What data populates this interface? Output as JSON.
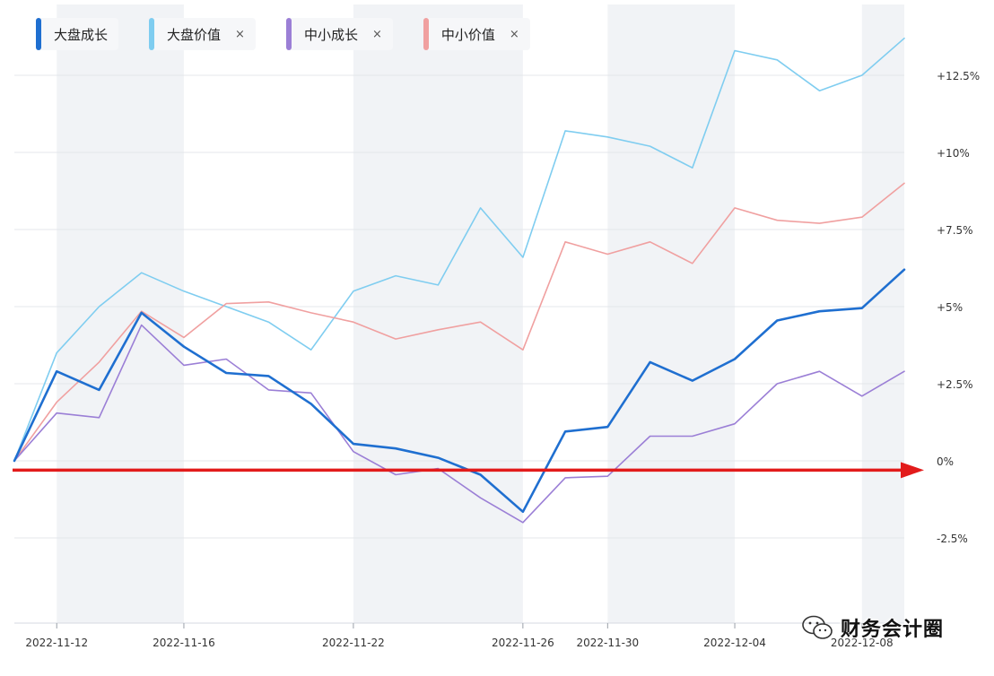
{
  "chart_data": {
    "type": "line",
    "title": "",
    "xlabel": "",
    "ylabel": "",
    "ylim": [
      -4.5,
      14.5
    ],
    "y_ticks": [
      {
        "value": 12.5,
        "label": "+12.5%"
      },
      {
        "value": 10,
        "label": "+10%"
      },
      {
        "value": 7.5,
        "label": "+7.5%"
      },
      {
        "value": 5,
        "label": "+5%"
      },
      {
        "value": 2.5,
        "label": "+2.5%"
      },
      {
        "value": 0,
        "label": "0%"
      },
      {
        "value": -2.5,
        "label": "-2.5%"
      }
    ],
    "x_count": 22,
    "x_tick_labels": [
      {
        "index": 1,
        "label": "2022-11-12"
      },
      {
        "index": 4,
        "label": "2022-11-16"
      },
      {
        "index": 8,
        "label": "2022-11-22"
      },
      {
        "index": 12,
        "label": "2022-11-26"
      },
      {
        "index": 14,
        "label": "2022-11-30"
      },
      {
        "index": 17,
        "label": "2022-12-04"
      },
      {
        "index": 20,
        "label": "2022-12-08"
      }
    ],
    "shaded_bands": [
      [
        1,
        4
      ],
      [
        8,
        12
      ],
      [
        14,
        17
      ],
      [
        20,
        21
      ]
    ],
    "series": [
      {
        "name": "大盘成长",
        "color": "#1f6fd0",
        "width": 2.6,
        "closable": false,
        "values": [
          0,
          2.9,
          2.3,
          4.8,
          3.7,
          2.85,
          2.75,
          1.85,
          0.55,
          0.4,
          0.1,
          -0.45,
          -1.65,
          0.95,
          1.1,
          3.2,
          2.6,
          3.3,
          4.55,
          4.85,
          4.95,
          6.2
        ]
      },
      {
        "name": "大盘价值",
        "color": "#7fcdf0",
        "width": 1.6,
        "closable": true,
        "values": [
          0,
          3.5,
          5.0,
          6.1,
          5.5,
          5.0,
          4.5,
          3.6,
          5.5,
          6.0,
          5.7,
          8.2,
          6.6,
          10.7,
          10.5,
          10.2,
          9.5,
          13.3,
          13.0,
          12.0,
          12.5,
          13.7
        ]
      },
      {
        "name": "中小成长",
        "color": "#9b7fd6",
        "width": 1.6,
        "closable": true,
        "values": [
          0,
          1.55,
          1.4,
          4.4,
          3.1,
          3.3,
          2.3,
          2.2,
          0.3,
          -0.45,
          -0.25,
          -1.2,
          -2.0,
          -0.55,
          -0.5,
          0.8,
          0.8,
          1.2,
          2.5,
          2.9,
          2.1,
          2.9
        ]
      },
      {
        "name": "中小价值",
        "color": "#f0a0a0",
        "width": 1.6,
        "closable": true,
        "values": [
          0,
          1.9,
          3.2,
          4.85,
          4.0,
          5.1,
          5.15,
          4.8,
          4.5,
          3.95,
          4.25,
          4.5,
          3.6,
          7.1,
          6.7,
          7.1,
          6.4,
          8.2,
          7.8,
          7.7,
          7.9,
          9.0
        ]
      }
    ],
    "reference_arrow": {
      "value": -0.3,
      "color": "#e21b1b"
    },
    "close_symbol": "×",
    "watermark": "财务会计圈",
    "grid": true,
    "legend_position": "top-left"
  }
}
